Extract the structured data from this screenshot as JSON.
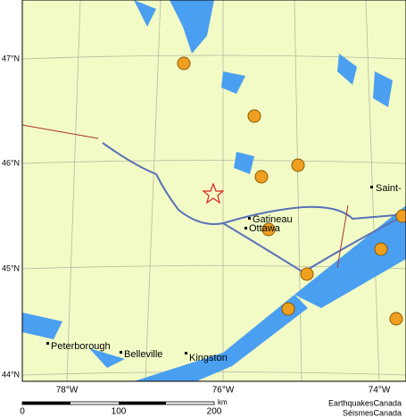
{
  "map": {
    "latitude_labels": [
      "47°N",
      "46°N",
      "45°N",
      "44°N"
    ],
    "longitude_labels": [
      "78°W",
      "76°W",
      "74°W"
    ],
    "cities": [
      "Peterborough",
      "Belleville",
      "Kingston",
      "Ottawa",
      "Gatineau",
      "Saint-"
    ],
    "scale": {
      "ticks": [
        "0",
        "100",
        "200"
      ],
      "unit": "km"
    },
    "credit": [
      "EarthquakesCanada",
      "SéismesCanada"
    ]
  }
}
